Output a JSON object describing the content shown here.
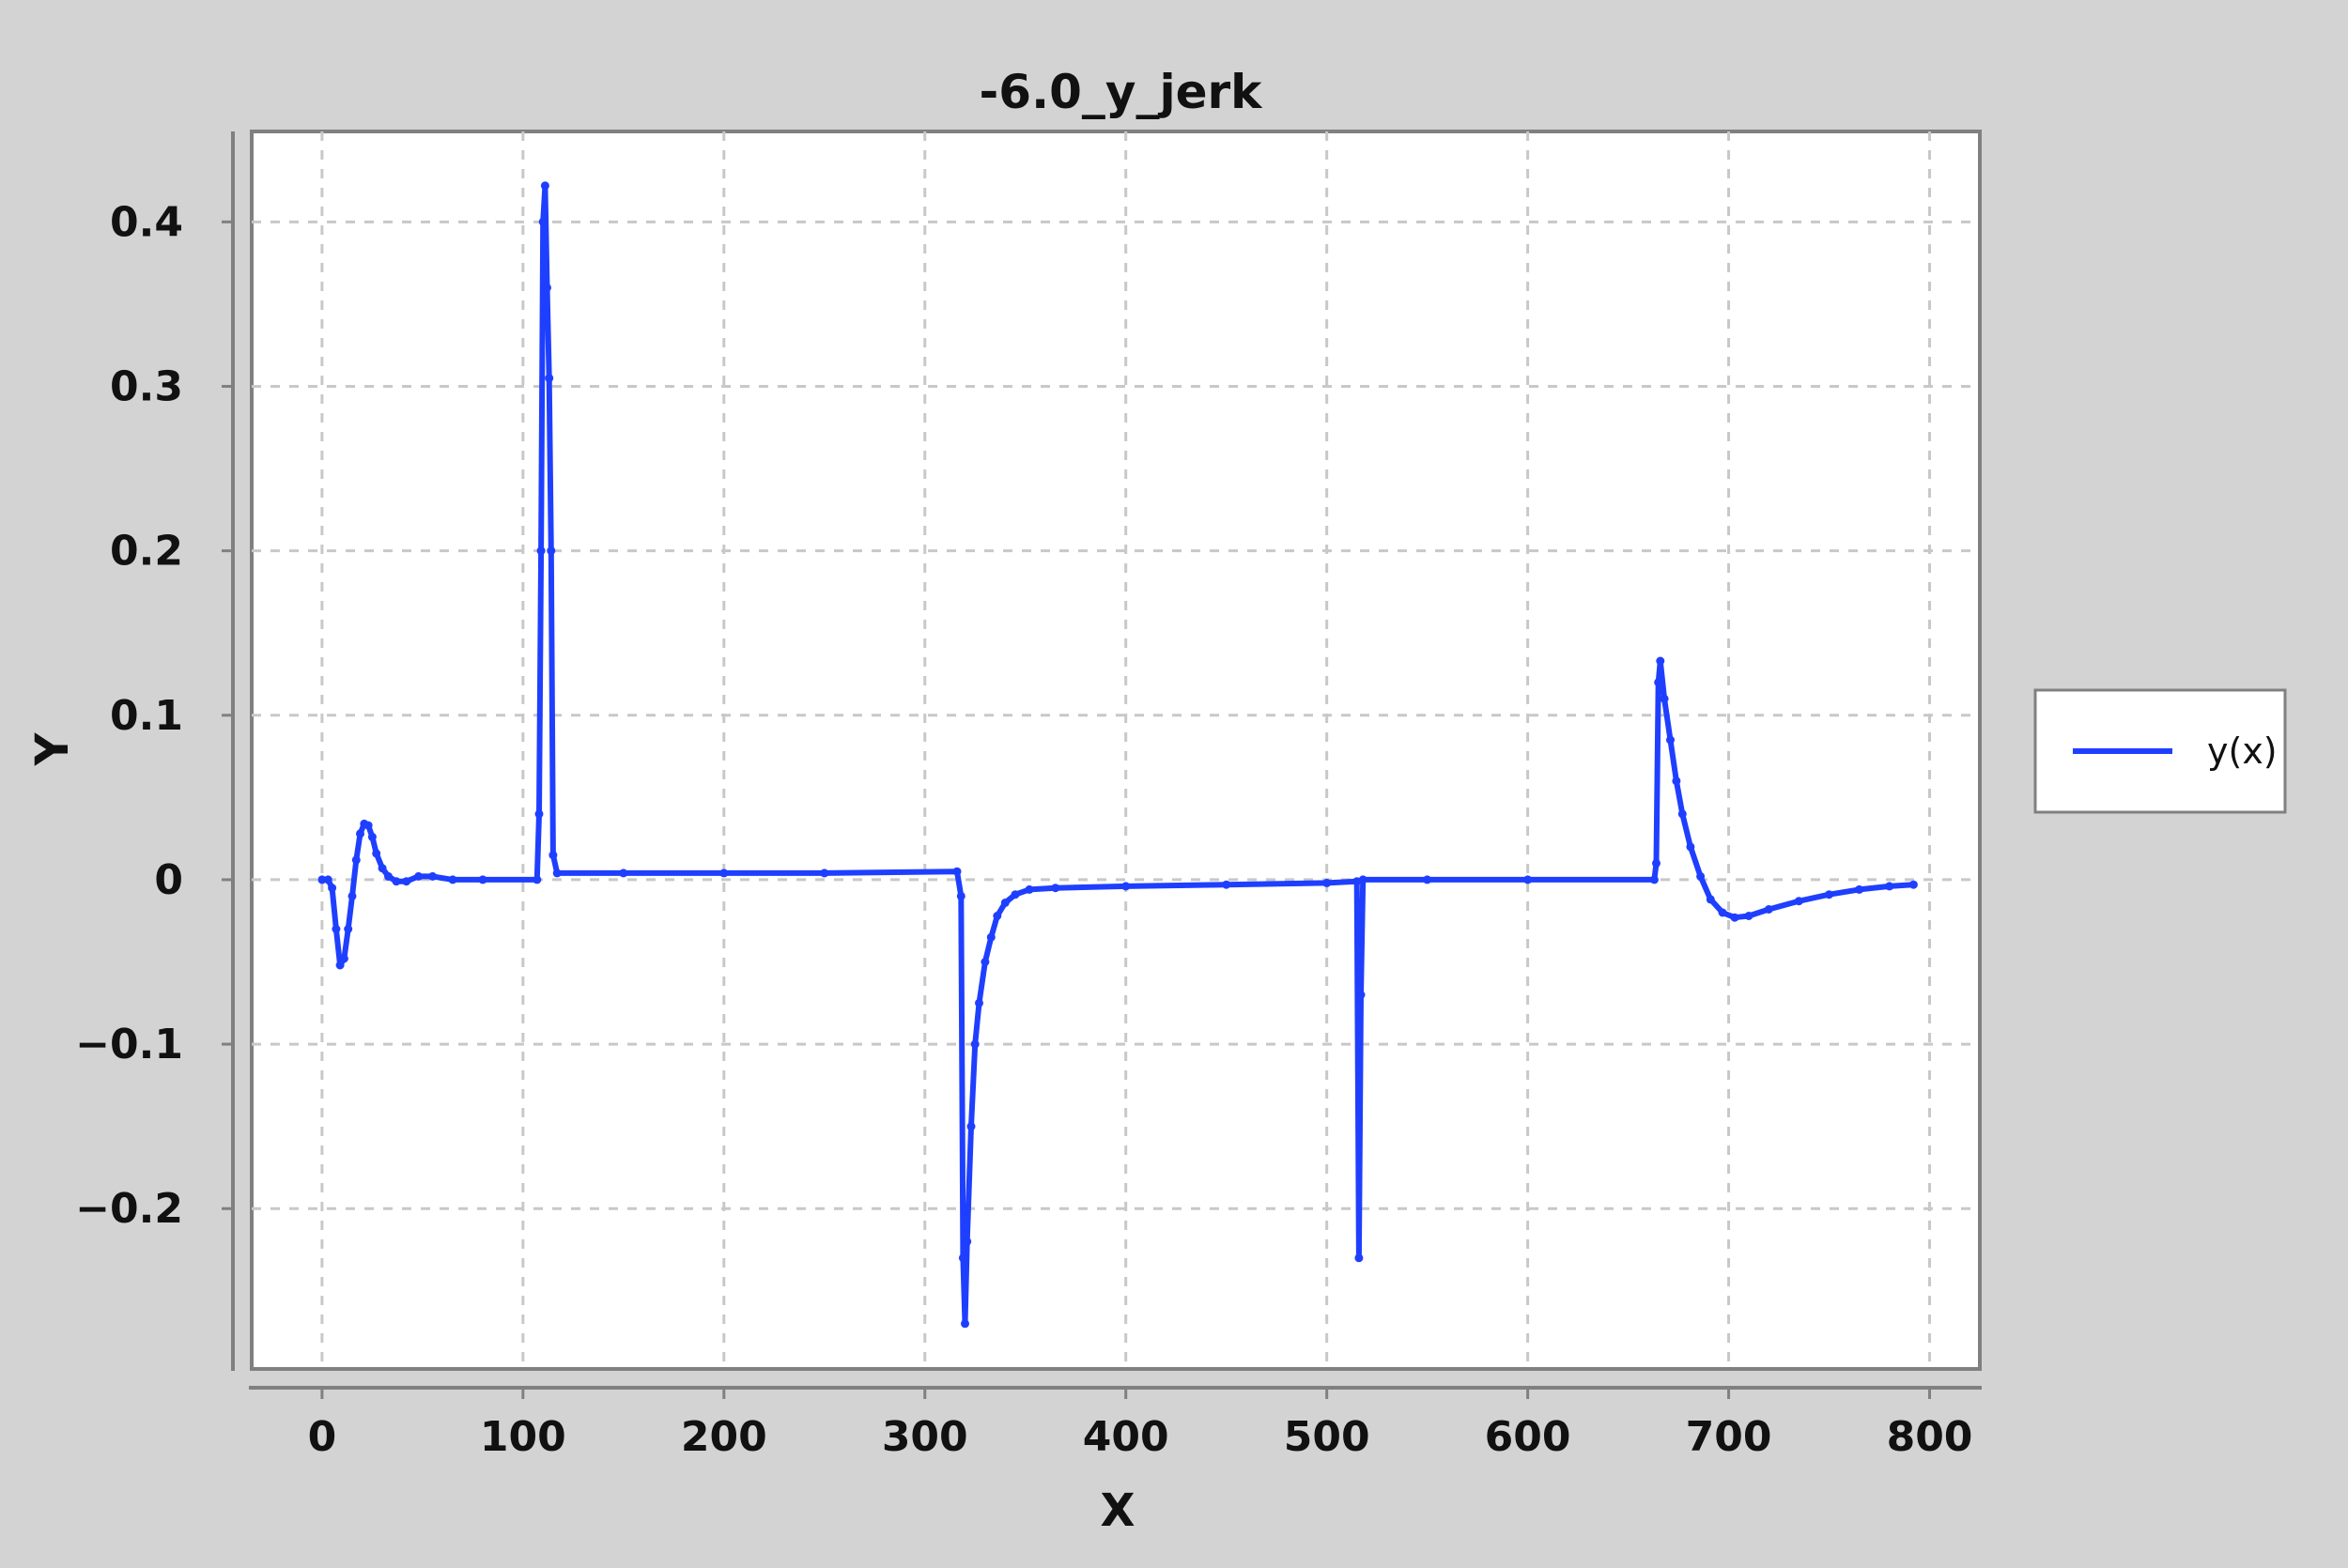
{
  "chart_data": {
    "type": "line",
    "title": "-6.0_y_jerk",
    "xlabel": "X",
    "ylabel": "Y",
    "xlim": [
      -35,
      825
    ],
    "ylim": [
      -0.2975,
      0.455
    ],
    "x_ticks": [
      0,
      100,
      200,
      300,
      400,
      500,
      600,
      700,
      800
    ],
    "x_tick_labels": [
      "0",
      "100",
      "200",
      "300",
      "400",
      "500",
      "600",
      "700",
      "800"
    ],
    "y_ticks": [
      0.4,
      0.3,
      0.2,
      0.1,
      0,
      -0.1,
      -0.2
    ],
    "y_tick_labels": [
      "0.4",
      "0.3",
      "0.2",
      "0.1",
      "0",
      "−0.1",
      "−0.2"
    ],
    "grid": true,
    "legend_position": "right",
    "series": [
      {
        "name": "y(x)",
        "color": "#1f3fff",
        "points": [
          [
            0,
            0
          ],
          [
            3,
            0
          ],
          [
            5,
            -0.005
          ],
          [
            7,
            -0.03
          ],
          [
            9,
            -0.052
          ],
          [
            11,
            -0.048
          ],
          [
            13,
            -0.03
          ],
          [
            15,
            -0.01
          ],
          [
            17,
            0.012
          ],
          [
            19,
            0.028
          ],
          [
            21,
            0.034
          ],
          [
            23,
            0.033
          ],
          [
            25,
            0.026
          ],
          [
            27,
            0.016
          ],
          [
            30,
            0.007
          ],
          [
            33,
            0.002
          ],
          [
            37,
            -0.001
          ],
          [
            42,
            -0.001
          ],
          [
            48,
            0.002
          ],
          [
            55,
            0.002
          ],
          [
            65,
            0.0
          ],
          [
            80,
            0.0
          ],
          [
            107,
            0.0
          ],
          [
            108,
            0.04
          ],
          [
            109,
            0.2
          ],
          [
            110,
            0.4
          ],
          [
            111,
            0.422
          ],
          [
            112,
            0.36
          ],
          [
            113,
            0.305
          ],
          [
            114,
            0.2
          ],
          [
            115,
            0.015
          ],
          [
            117,
            0.004
          ],
          [
            150,
            0.004
          ],
          [
            200,
            0.004
          ],
          [
            250,
            0.004
          ],
          [
            316,
            0.005
          ],
          [
            318,
            -0.01
          ],
          [
            319,
            -0.23
          ],
          [
            320,
            -0.27
          ],
          [
            321,
            -0.22
          ],
          [
            323,
            -0.15
          ],
          [
            325,
            -0.1
          ],
          [
            327,
            -0.075
          ],
          [
            330,
            -0.05
          ],
          [
            333,
            -0.035
          ],
          [
            336,
            -0.022
          ],
          [
            340,
            -0.014
          ],
          [
            345,
            -0.009
          ],
          [
            352,
            -0.006
          ],
          [
            365,
            -0.005
          ],
          [
            400,
            -0.004
          ],
          [
            450,
            -0.003
          ],
          [
            500,
            -0.002
          ],
          [
            515,
            -0.001
          ],
          [
            516,
            -0.23
          ],
          [
            517,
            -0.07
          ],
          [
            518,
            0.0
          ],
          [
            550,
            0.0
          ],
          [
            600,
            0.0
          ],
          [
            663,
            0.0
          ],
          [
            664,
            0.01
          ],
          [
            665,
            0.12
          ],
          [
            666,
            0.133
          ],
          [
            668,
            0.11
          ],
          [
            671,
            0.085
          ],
          [
            674,
            0.06
          ],
          [
            677,
            0.04
          ],
          [
            681,
            0.02
          ],
          [
            686,
            0.002
          ],
          [
            691,
            -0.012
          ],
          [
            697,
            -0.02
          ],
          [
            703,
            -0.023
          ],
          [
            710,
            -0.022
          ],
          [
            720,
            -0.018
          ],
          [
            735,
            -0.013
          ],
          [
            750,
            -0.009
          ],
          [
            765,
            -0.006
          ],
          [
            780,
            -0.004
          ],
          [
            792,
            -0.003
          ]
        ]
      }
    ]
  }
}
